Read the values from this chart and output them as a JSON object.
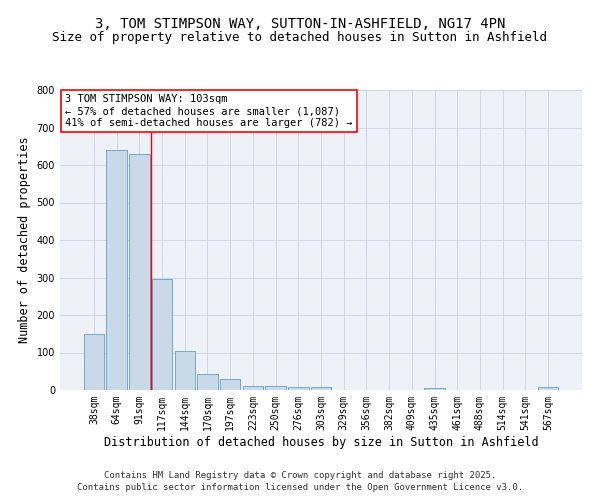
{
  "title_line1": "3, TOM STIMPSON WAY, SUTTON-IN-ASHFIELD, NG17 4PN",
  "title_line2": "Size of property relative to detached houses in Sutton in Ashfield",
  "xlabel": "Distribution of detached houses by size in Sutton in Ashfield",
  "ylabel": "Number of detached properties",
  "categories": [
    "38sqm",
    "64sqm",
    "91sqm",
    "117sqm",
    "144sqm",
    "170sqm",
    "197sqm",
    "223sqm",
    "250sqm",
    "276sqm",
    "303sqm",
    "329sqm",
    "356sqm",
    "382sqm",
    "409sqm",
    "435sqm",
    "461sqm",
    "488sqm",
    "514sqm",
    "541sqm",
    "567sqm"
  ],
  "values": [
    150,
    640,
    630,
    295,
    103,
    43,
    29,
    10,
    10,
    7,
    7,
    0,
    0,
    0,
    0,
    5,
    0,
    0,
    0,
    0,
    7
  ],
  "bar_color": "#c9d9e8",
  "bar_edge_color": "#6fa8d6",
  "grid_color": "#c8d4e4",
  "background_color": "#eef2f8",
  "red_line_x": 2.5,
  "annotation_box_text": "3 TOM STIMPSON WAY: 103sqm\n← 57% of detached houses are smaller (1,087)\n41% of semi-detached houses are larger (782) →",
  "ylim": [
    0,
    800
  ],
  "yticks": [
    0,
    100,
    200,
    300,
    400,
    500,
    600,
    700,
    800
  ],
  "footnote_line1": "Contains HM Land Registry data © Crown copyright and database right 2025.",
  "footnote_line2": "Contains public sector information licensed under the Open Government Licence v3.0.",
  "title_fontsize": 10,
  "subtitle_fontsize": 9,
  "axis_label_fontsize": 8.5,
  "tick_fontsize": 7,
  "annotation_fontsize": 7.5,
  "footnote_fontsize": 6.5
}
